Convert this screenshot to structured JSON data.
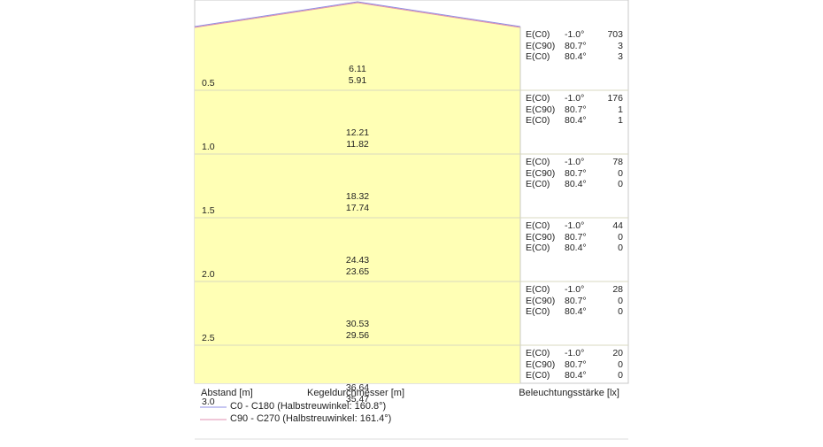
{
  "chart_data": {
    "type": "table",
    "xlabel": "Abstand [m]",
    "center_label": "Kegeldurchmesser [m]",
    "right_label": "Beleuchtungsstärke [lx]",
    "legend": [
      {
        "line": "C0 - C180 (Halbstreuwinkel: 160.8°)",
        "color": "#8e8ee6"
      },
      {
        "line": "C90 - C270 (Halbstreuwinkel: 161.4°)",
        "color": "#e08fb0"
      }
    ],
    "rows": [
      {
        "distance": "0.5",
        "diameters": [
          "6.11",
          "5.91"
        ],
        "illuminance": [
          {
            "label": "E(C0)",
            "angle": "-1.0°",
            "value": "703"
          },
          {
            "label": "E(C90)",
            "angle": "80.7°",
            "value": "3"
          },
          {
            "label": "E(C0)",
            "angle": "80.4°",
            "value": "3"
          }
        ]
      },
      {
        "distance": "1.0",
        "diameters": [
          "12.21",
          "11.82"
        ],
        "illuminance": [
          {
            "label": "E(C0)",
            "angle": "-1.0°",
            "value": "176"
          },
          {
            "label": "E(C90)",
            "angle": "80.7°",
            "value": "1"
          },
          {
            "label": "E(C0)",
            "angle": "80.4°",
            "value": "1"
          }
        ]
      },
      {
        "distance": "1.5",
        "diameters": [
          "18.32",
          "17.74"
        ],
        "illuminance": [
          {
            "label": "E(C0)",
            "angle": "-1.0°",
            "value": "78"
          },
          {
            "label": "E(C90)",
            "angle": "80.7°",
            "value": "0"
          },
          {
            "label": "E(C0)",
            "angle": "80.4°",
            "value": "0"
          }
        ]
      },
      {
        "distance": "2.0",
        "diameters": [
          "24.43",
          "23.65"
        ],
        "illuminance": [
          {
            "label": "E(C0)",
            "angle": "-1.0°",
            "value": "44"
          },
          {
            "label": "E(C90)",
            "angle": "80.7°",
            "value": "0"
          },
          {
            "label": "E(C0)",
            "angle": "80.4°",
            "value": "0"
          }
        ]
      },
      {
        "distance": "2.5",
        "diameters": [
          "30.53",
          "29.56"
        ],
        "illuminance": [
          {
            "label": "E(C0)",
            "angle": "-1.0°",
            "value": "28"
          },
          {
            "label": "E(C90)",
            "angle": "80.7°",
            "value": "0"
          },
          {
            "label": "E(C0)",
            "angle": "80.4°",
            "value": "0"
          }
        ]
      },
      {
        "distance": "3.0",
        "diameters": [
          "36.64",
          "35.47"
        ],
        "illuminance": [
          {
            "label": "E(C0)",
            "angle": "-1.0°",
            "value": "20"
          },
          {
            "label": "E(C90)",
            "angle": "80.7°",
            "value": "0"
          },
          {
            "label": "E(C0)",
            "angle": "80.4°",
            "value": "0"
          }
        ]
      }
    ]
  },
  "colors": {
    "fill": "#ffffb5",
    "grid": "#d8d8c0",
    "border": "#c8c8c8"
  }
}
